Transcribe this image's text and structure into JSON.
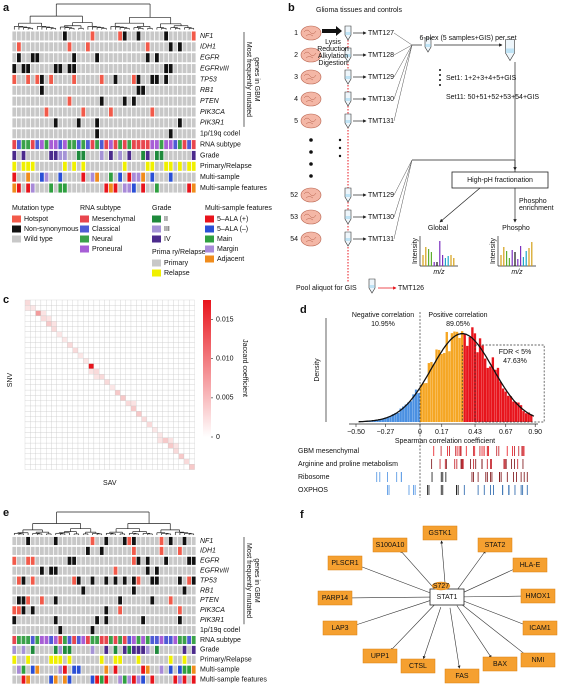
{
  "panels": {
    "a": {
      "label": "a",
      "genes": [
        "NF1",
        "IDH1",
        "EGFR",
        "EGFRvIII",
        "TP53",
        "RB1",
        "PTEN",
        "PIK3CA",
        "PIK3R1"
      ],
      "gene_group_label": [
        "Most frequently mutated",
        "genes in GBM"
      ],
      "tracks": [
        "1p/19q codel",
        "RNA subtype",
        "Grade",
        "Primary/Relapse",
        "Multi-sample",
        "Multi-sample features"
      ],
      "legend": {
        "mutation_type": {
          "title": "Mutation type",
          "items": [
            "Hotspot",
            "Non-synonymous",
            "Wild type"
          ]
        },
        "rna_subtype": {
          "title": "RNA subtype",
          "items": [
            "Mesenchymal",
            "Classical",
            "Neural",
            "Proneural"
          ]
        },
        "grade": {
          "title": "Grade",
          "items": [
            "II",
            "III",
            "IV"
          ]
        },
        "primary_relapse": {
          "title": "Prima ry/Relapse",
          "items": [
            "Primary",
            "Relapse"
          ]
        },
        "multi_sample_features": {
          "title": "Multi-sample features",
          "items": [
            "5–ALA (+)",
            "5–ALA (–)",
            "Main",
            "Margin",
            "Adjacent"
          ]
        }
      }
    },
    "b": {
      "label": "b",
      "title": "Glioma tissues and controls",
      "samples": [
        "1",
        "2",
        "3",
        "4",
        "5",
        "52",
        "53",
        "54"
      ],
      "tmt": [
        "TMT127",
        "TMT128",
        "TMT129",
        "TMT130",
        "TMT131",
        "TMT129",
        "TMT130",
        "TMT131"
      ],
      "steps": [
        "Lysis",
        "Reduction",
        "Alkylation",
        "Digestion"
      ],
      "plex": "6-plex (5 samples+GIS) per set",
      "set1": "Set1: 1+2+3+4+5+GIS",
      "set11": "Set11: 50+51+52+53+54+GIS",
      "fractionation": "High-pH fractionation",
      "enrichment": [
        "Phospho",
        "enrichment"
      ],
      "global": "Global",
      "phospho": "Phospho",
      "intensity": "Intensity",
      "mz": "m/z",
      "pool": "Pool aliquot for GIS",
      "tmt126": "TMT126"
    },
    "c": {
      "label": "c",
      "ylabel": "SNV",
      "xlabel": "SAV",
      "colorbar_title": "Jaccard coefficient",
      "colorbar_ticks": [
        {
          "value": 0.015,
          "label": "0.015"
        },
        {
          "value": 0.01,
          "label": "0.010"
        },
        {
          "value": 0.005,
          "label": "0.005"
        },
        0
      ]
    },
    "d": {
      "label": "d",
      "ylabel": "Density",
      "xlabel": "Spearman correlation coefficient",
      "xticks": [
        {
          "value": -0.5,
          "label": "−0.50"
        },
        {
          "value": -0.27,
          "label": "−0.27"
        },
        0,
        0.17,
        0.43,
        0.67,
        {
          "value": 0.9,
          "label": "0.90"
        }
      ],
      "negative": "Negative correlation",
      "negative_pct": "10.95%",
      "positive": "Positive correlation",
      "positive_pct": "89.05%",
      "fdr": "FDR < 5%",
      "fdr_pct": "47.63%",
      "rugs": [
        "GBM mesenchymal",
        "Arginine and proline metabolism",
        "Ribosome",
        "OXPHOS"
      ]
    },
    "e": {
      "label": "e",
      "genes": [
        "NF1",
        "IDH1",
        "EGFR",
        "EGFRvIII",
        "TP53",
        "RB1",
        "PTEN",
        "PIK3CA",
        "PIK3R1"
      ],
      "gene_group_label": [
        "Most frequently mutated",
        "genes in GBM"
      ],
      "tracks": [
        "1p/19q codel",
        "RNA subtype",
        "Grade",
        "Primary/Relapse",
        "Multi-sample",
        "Multi-sample features"
      ]
    },
    "f": {
      "label": "f",
      "hub": "STAT1",
      "site": "S727",
      "targets": [
        "S100A10",
        "GSTK1",
        "STAT2",
        "PLSCR1",
        "HLA-E",
        "PARP14",
        "HMOX1",
        "ICAM1",
        "LAP3",
        "NMI",
        "UPP1",
        "BAX",
        "CTSL",
        "FAS"
      ]
    }
  }
}
